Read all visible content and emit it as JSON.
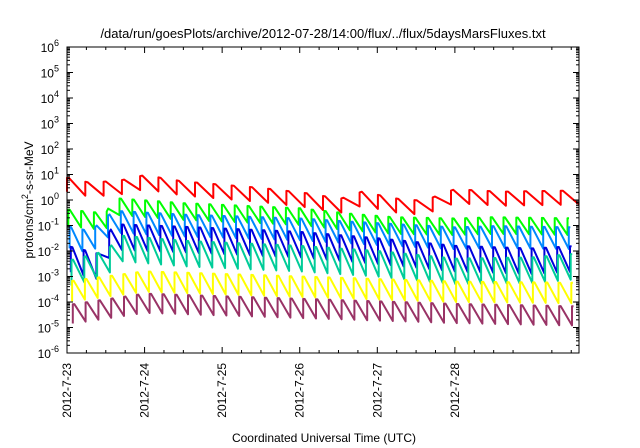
{
  "chart_data": {
    "type": "line",
    "title": "/data/run/goesPlots/archive/2012-07-28/14:00/flux/../flux/5daysMarsFluxes.txt",
    "xlabel": "Coordinated Universal Time (UTC)",
    "ylabel": "protons/cm2-s-sr-MeV",
    "ylabel_parts": {
      "pre": "protons/cm",
      "sup": "2",
      "post": "-s-sr-MeV"
    },
    "yscale": "log",
    "ylim_exp": [
      -6,
      6
    ],
    "y_ticks": [
      {
        "base": "10",
        "exp": "-6"
      },
      {
        "base": "10",
        "exp": "-5"
      },
      {
        "base": "10",
        "exp": "-4"
      },
      {
        "base": "10",
        "exp": "-3"
      },
      {
        "base": "10",
        "exp": "-2"
      },
      {
        "base": "10",
        "exp": "-1"
      },
      {
        "base": "10",
        "exp": "0"
      },
      {
        "base": "10",
        "exp": "1"
      },
      {
        "base": "10",
        "exp": "2"
      },
      {
        "base": "10",
        "exp": "3"
      },
      {
        "base": "10",
        "exp": "4"
      },
      {
        "base": "10",
        "exp": "5"
      },
      {
        "base": "10",
        "exp": "6"
      }
    ],
    "xlim_days": [
      0,
      6.6
    ],
    "x_ticks": [
      {
        "label": "2012-7-23",
        "day": 0
      },
      {
        "label": "2012-7-24",
        "day": 1
      },
      {
        "label": "2012-7-25",
        "day": 2
      },
      {
        "label": "2012-7-26",
        "day": 3
      },
      {
        "label": "2012-7-27",
        "day": 4
      },
      {
        "label": "2012-7-28",
        "day": 5
      }
    ],
    "grid": false,
    "legend": "none",
    "series": [
      {
        "color": "#ff0000",
        "cycles": 28,
        "phase": 0.0,
        "amp": 0.55,
        "levels": [
          [
            0,
            0.6
          ],
          [
            0.3,
            0.4
          ],
          [
            0.7,
            0.5
          ],
          [
            1.0,
            0.7
          ],
          [
            1.5,
            0.45
          ],
          [
            2.5,
            0.2
          ],
          [
            3.2,
            -0.05
          ],
          [
            3.5,
            -0.25
          ],
          [
            3.8,
            0.05
          ],
          [
            4.3,
            -0.25
          ],
          [
            4.6,
            -0.3
          ],
          [
            5.0,
            0.15
          ],
          [
            5.6,
            0.05
          ],
          [
            6.6,
            0.1
          ]
        ]
      },
      {
        "color": "#00ff00",
        "cycles": 40,
        "phase": 0.1,
        "amp": 0.65,
        "levels": [
          [
            0,
            -0.7
          ],
          [
            0.5,
            -0.85
          ],
          [
            0.6,
            -0.25
          ],
          [
            1.5,
            -0.45
          ],
          [
            3.0,
            -0.65
          ],
          [
            3.6,
            -0.85
          ],
          [
            4.2,
            -1.0
          ],
          [
            5.0,
            -1.05
          ],
          [
            5.5,
            -1.0
          ],
          [
            6.6,
            -1.05
          ]
        ]
      },
      {
        "color": "#0088ff",
        "cycles": 40,
        "phase": 0.2,
        "amp": 0.85,
        "levels": [
          [
            0,
            -1.45
          ],
          [
            0.3,
            -1.65
          ],
          [
            0.6,
            -0.85
          ],
          [
            1.5,
            -1.0
          ],
          [
            3.0,
            -1.15
          ],
          [
            3.8,
            -1.3
          ],
          [
            5.0,
            -1.5
          ],
          [
            5.5,
            -1.45
          ],
          [
            6.6,
            -1.5
          ]
        ]
      },
      {
        "color": "#0000dd",
        "cycles": 40,
        "phase": 0.3,
        "amp": 1.0,
        "levels": [
          [
            0,
            -2.3
          ],
          [
            0.4,
            -2.6
          ],
          [
            0.6,
            -1.45
          ],
          [
            1.5,
            -1.55
          ],
          [
            3.0,
            -1.75
          ],
          [
            4.0,
            -2.0
          ],
          [
            5.0,
            -2.3
          ],
          [
            6.0,
            -2.4
          ],
          [
            6.6,
            -2.3
          ]
        ]
      },
      {
        "color": "#00cc99",
        "cycles": 40,
        "phase": 0.35,
        "amp": 1.0,
        "levels": [
          [
            0,
            -2.9
          ],
          [
            0.5,
            -2.5
          ],
          [
            0.7,
            -1.9
          ],
          [
            1.5,
            -2.1
          ],
          [
            3.0,
            -2.3
          ],
          [
            4.0,
            -2.5
          ],
          [
            5.0,
            -2.8
          ],
          [
            6.0,
            -2.75
          ],
          [
            6.6,
            -2.6
          ]
        ]
      },
      {
        "color": "#ffff00",
        "cycles": 40,
        "phase": 0.4,
        "amp": 0.8,
        "levels": [
          [
            0,
            -3.6
          ],
          [
            1.0,
            -3.2
          ],
          [
            2.0,
            -3.3
          ],
          [
            3.0,
            -3.4
          ],
          [
            4.0,
            -3.5
          ],
          [
            5.0,
            -3.6
          ],
          [
            6.6,
            -3.65
          ]
        ]
      },
      {
        "color": "#993366",
        "cycles": 40,
        "phase": 0.45,
        "amp": 0.75,
        "levels": [
          [
            0,
            -4.5
          ],
          [
            1.0,
            -4.05
          ],
          [
            2.0,
            -4.15
          ],
          [
            3.0,
            -4.25
          ],
          [
            4.0,
            -4.35
          ],
          [
            5.0,
            -4.45
          ],
          [
            6.6,
            -4.55
          ]
        ]
      }
    ]
  }
}
